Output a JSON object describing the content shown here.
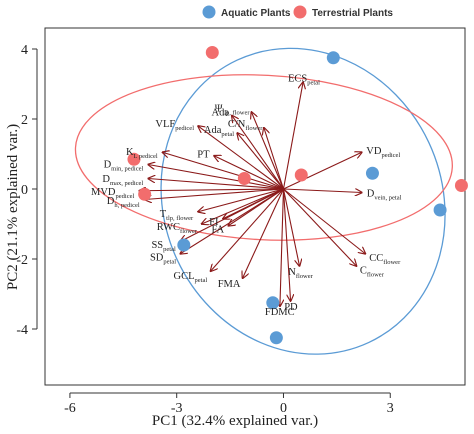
{
  "chart_data": {
    "type": "scatter",
    "subtype": "pca-biplot",
    "title": "",
    "xlabel": "PC1 (32.4% explained var.)",
    "ylabel": "PC2 (21.1% explained var.)",
    "xlim": [
      -6.7,
      5.1
    ],
    "ylim": [
      -5.6,
      4.6
    ],
    "xticks": [
      -6,
      -3,
      0,
      3
    ],
    "yticks": [
      -4,
      -2,
      0,
      2,
      4
    ],
    "grid": false,
    "legend_position": "top",
    "arrow_color": "#8b1a1a",
    "series": [
      {
        "name": "Aquatic Plants",
        "color": "#5b9bd5",
        "points": [
          {
            "x": 1.4,
            "y": 3.75
          },
          {
            "x": 2.5,
            "y": 0.45
          },
          {
            "x": 4.4,
            "y": -0.6
          },
          {
            "x": -2.8,
            "y": -1.6
          },
          {
            "x": -0.3,
            "y": -3.25
          },
          {
            "x": -0.2,
            "y": -4.25
          }
        ]
      },
      {
        "name": "Terrestrial Plants",
        "color": "#f26d6d",
        "points": [
          {
            "x": -2.0,
            "y": 3.9
          },
          {
            "x": -4.2,
            "y": 0.85
          },
          {
            "x": -3.9,
            "y": -0.15
          },
          {
            "x": -1.1,
            "y": 0.3
          },
          {
            "x": 0.5,
            "y": 0.4
          },
          {
            "x": 5.0,
            "y": 0.1
          }
        ]
      }
    ],
    "ellipses": [
      {
        "group": "Aquatic Plants",
        "cx": 0.55,
        "cy": -0.35,
        "rx": 3.9,
        "ry": 4.45,
        "angle_deg": 25
      },
      {
        "group": "Terrestrial Plants",
        "cx": -0.55,
        "cy": 0.9,
        "rx": 5.3,
        "ry": 2.35,
        "angle_deg": -3
      }
    ],
    "loadings": [
      {
        "label": "ECS",
        "sub": "petal",
        "x": 0.55,
        "y": 3.05
      },
      {
        "label": "Ψ",
        "sub": "tlp, flower",
        "x": -0.9,
        "y": 2.2
      },
      {
        "label": "Ada",
        "sub": "",
        "x": -1.45,
        "y": 2.1
      },
      {
        "label": "C/N",
        "sub": "flower",
        "x": -0.55,
        "y": 1.75
      },
      {
        "label": "Ada",
        "sub": "petal",
        "x": -1.3,
        "y": 1.6
      },
      {
        "label": "VLF",
        "sub": "pedicel",
        "x": -2.4,
        "y": 1.8
      },
      {
        "label": "PT",
        "sub": "",
        "x": -1.95,
        "y": 0.95
      },
      {
        "label": "K",
        "sub": "L pedicel",
        "x": -3.4,
        "y": 1.05
      },
      {
        "label": "D",
        "sub": "min, pedicel",
        "x": -3.8,
        "y": 0.7
      },
      {
        "label": "D",
        "sub": "max, pedicel",
        "x": -3.8,
        "y": 0.3
      },
      {
        "label": "MVD",
        "sub": "pedicel",
        "x": -4.05,
        "y": -0.05
      },
      {
        "label": "D",
        "sub": "h, pedicel",
        "x": -3.9,
        "y": -0.3
      },
      {
        "label": "T",
        "sub": "tlp, flower",
        "x": -2.4,
        "y": -0.65
      },
      {
        "label": "FI",
        "sub": "",
        "x": -1.7,
        "y": -0.85
      },
      {
        "label": "RWC",
        "sub": "flower",
        "x": -2.3,
        "y": -1.0
      },
      {
        "label": "FA",
        "sub": "",
        "x": -1.55,
        "y": -1.05
      },
      {
        "label": "SS",
        "sub": "petal",
        "x": -2.9,
        "y": -1.5
      },
      {
        "label": "SD",
        "sub": "petal",
        "x": -2.9,
        "y": -1.85
      },
      {
        "label": "GCL",
        "sub": "petal",
        "x": -2.05,
        "y": -2.35
      },
      {
        "label": "FMA",
        "sub": "",
        "x": -1.15,
        "y": -2.55
      },
      {
        "label": "N",
        "sub": "flower",
        "x": 0.45,
        "y": -2.2
      },
      {
        "label": "FDMC",
        "sub": "",
        "x": -0.1,
        "y": -3.35
      },
      {
        "label": "PD",
        "sub": "",
        "x": 0.2,
        "y": -3.2
      },
      {
        "label": "CC",
        "sub": "flower",
        "x": 2.3,
        "y": -1.85
      },
      {
        "label": "C",
        "sub": "flower",
        "x": 2.05,
        "y": -2.2
      },
      {
        "label": "VD",
        "sub": "pedicel",
        "x": 2.2,
        "y": 1.05
      },
      {
        "label": "D",
        "sub": "vein, petal",
        "x": 2.2,
        "y": -0.1
      }
    ]
  }
}
